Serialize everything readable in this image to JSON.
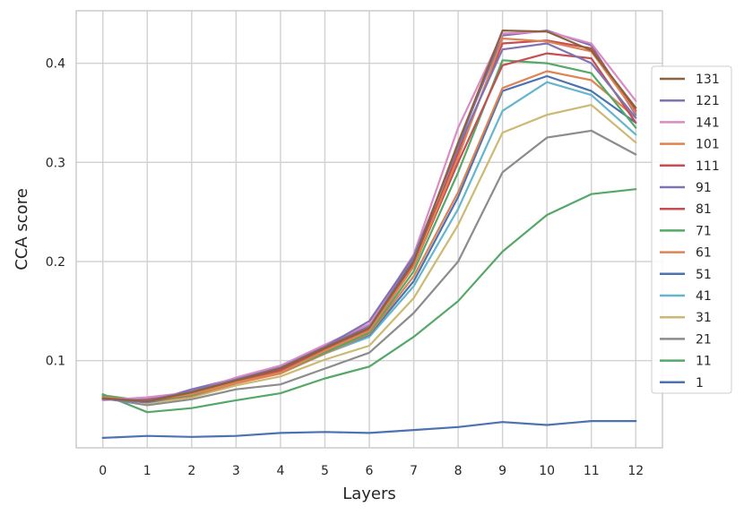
{
  "chart_data": {
    "type": "line",
    "title": "",
    "xlabel": "Layers",
    "ylabel": "CCA score",
    "x": [
      0,
      1,
      2,
      3,
      4,
      5,
      6,
      7,
      8,
      9,
      10,
      11,
      12
    ],
    "x_tick_labels": [
      "0",
      "1",
      "2",
      "3",
      "4",
      "5",
      "6",
      "7",
      "8",
      "9",
      "10",
      "11",
      "12"
    ],
    "y_ticks": [
      0.1,
      0.2,
      0.3,
      0.4
    ],
    "y_tick_labels": [
      "0.1",
      "0.2",
      "0.3",
      "0.4"
    ],
    "xlim": [
      -0.6,
      12.6
    ],
    "ylim": [
      0.012,
      0.453
    ],
    "grid": true,
    "legend_position": "right",
    "series": [
      {
        "name": "131",
        "color": "#8c613c",
        "values": [
          0.062,
          0.059,
          0.068,
          0.08,
          0.092,
          0.113,
          0.133,
          0.2,
          0.32,
          0.433,
          0.432,
          0.413,
          0.355
        ]
      },
      {
        "name": "121",
        "color": "#8172b3",
        "values": [
          0.061,
          0.06,
          0.069,
          0.081,
          0.093,
          0.114,
          0.14,
          0.205,
          0.315,
          0.414,
          0.42,
          0.4,
          0.345
        ]
      },
      {
        "name": "141",
        "color": "#da8bc3",
        "values": [
          0.06,
          0.063,
          0.068,
          0.083,
          0.095,
          0.116,
          0.137,
          0.207,
          0.335,
          0.43,
          0.432,
          0.42,
          0.362
        ]
      },
      {
        "name": "101",
        "color": "#dd8452",
        "values": [
          0.063,
          0.06,
          0.066,
          0.078,
          0.088,
          0.11,
          0.13,
          0.195,
          0.305,
          0.425,
          0.422,
          0.412,
          0.35
        ]
      },
      {
        "name": "111",
        "color": "#c44e52",
        "values": [
          0.062,
          0.061,
          0.067,
          0.08,
          0.09,
          0.112,
          0.132,
          0.198,
          0.31,
          0.42,
          0.423,
          0.415,
          0.352
        ]
      },
      {
        "name": "91",
        "color": "#8172b3",
        "values": [
          0.061,
          0.058,
          0.071,
          0.082,
          0.093,
          0.115,
          0.135,
          0.203,
          0.318,
          0.428,
          0.433,
          0.418,
          0.348
        ]
      },
      {
        "name": "81",
        "color": "#c44e52",
        "values": [
          0.063,
          0.059,
          0.066,
          0.079,
          0.089,
          0.11,
          0.13,
          0.195,
          0.3,
          0.398,
          0.41,
          0.405,
          0.34
        ]
      },
      {
        "name": "71",
        "color": "#55a868",
        "values": [
          0.065,
          0.059,
          0.065,
          0.079,
          0.088,
          0.108,
          0.128,
          0.19,
          0.29,
          0.403,
          0.4,
          0.39,
          0.335
        ]
      },
      {
        "name": "61",
        "color": "#dd8452",
        "values": [
          0.064,
          0.059,
          0.064,
          0.077,
          0.087,
          0.107,
          0.127,
          0.185,
          0.27,
          0.375,
          0.392,
          0.383,
          0.345
        ]
      },
      {
        "name": "51",
        "color": "#4c72b0",
        "values": [
          0.062,
          0.058,
          0.065,
          0.078,
          0.088,
          0.108,
          0.126,
          0.18,
          0.265,
          0.372,
          0.387,
          0.372,
          0.34
        ]
      },
      {
        "name": "41",
        "color": "#64b5cd",
        "values": [
          0.061,
          0.059,
          0.065,
          0.078,
          0.087,
          0.107,
          0.124,
          0.175,
          0.253,
          0.352,
          0.381,
          0.368,
          0.328
        ]
      },
      {
        "name": "31",
        "color": "#ccb974",
        "values": [
          0.064,
          0.057,
          0.063,
          0.075,
          0.084,
          0.101,
          0.115,
          0.163,
          0.237,
          0.33,
          0.348,
          0.358,
          0.32
        ]
      },
      {
        "name": "21",
        "color": "#8c8c8c",
        "values": [
          0.062,
          0.055,
          0.061,
          0.071,
          0.076,
          0.092,
          0.108,
          0.148,
          0.2,
          0.29,
          0.325,
          0.332,
          0.308
        ]
      },
      {
        "name": "11",
        "color": "#55a868",
        "values": [
          0.066,
          0.048,
          0.052,
          0.06,
          0.067,
          0.082,
          0.094,
          0.124,
          0.16,
          0.21,
          0.247,
          0.268,
          0.273
        ]
      },
      {
        "name": "1",
        "color": "#4c72b0",
        "values": [
          0.022,
          0.024,
          0.023,
          0.024,
          0.027,
          0.028,
          0.027,
          0.03,
          0.033,
          0.038,
          0.035,
          0.039,
          0.039
        ]
      }
    ]
  }
}
